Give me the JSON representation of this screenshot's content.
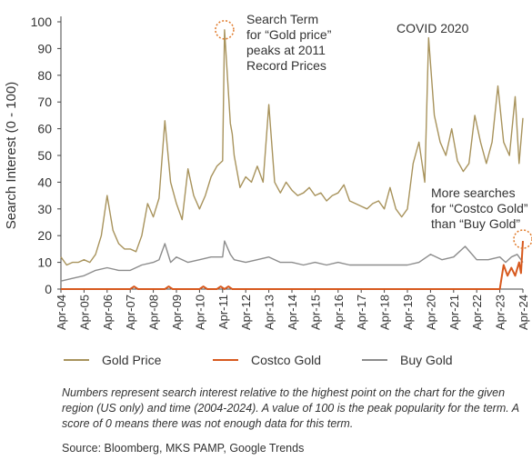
{
  "chart_data": {
    "type": "line",
    "ylabel": "Search Interest (0 - 100)",
    "xlabel": "",
    "ylim": [
      0,
      100
    ],
    "yticks": [
      0,
      10,
      20,
      30,
      40,
      50,
      60,
      70,
      80,
      90,
      100
    ],
    "x_range": [
      "Apr-04",
      "Apr-24"
    ],
    "xticks": [
      "Apr-04",
      "Apr-05",
      "Apr-06",
      "Apr-07",
      "Apr-08",
      "Apr-09",
      "Apr-10",
      "Apr-11",
      "Apr-12",
      "Apr-13",
      "Apr-14",
      "Apr-15",
      "Apr-16",
      "Apr-17",
      "Apr-18",
      "Apr-19",
      "Apr-20",
      "Apr-21",
      "Apr-22",
      "Apr-23",
      "Apr-24"
    ],
    "grid": false,
    "legend_placement": "bottom",
    "series": [
      {
        "name": "Gold Price",
        "color": "#a8935c",
        "points": [
          [
            "Apr-04",
            12
          ],
          [
            "Jul-04",
            9
          ],
          [
            "Oct-04",
            10
          ],
          [
            "Jan-05",
            10
          ],
          [
            "Apr-05",
            11
          ],
          [
            "Jul-05",
            10
          ],
          [
            "Oct-05",
            13
          ],
          [
            "Jan-06",
            20
          ],
          [
            "Apr-06",
            35
          ],
          [
            "Jul-06",
            22
          ],
          [
            "Oct-06",
            17
          ],
          [
            "Jan-07",
            15
          ],
          [
            "Apr-07",
            15
          ],
          [
            "Jul-07",
            14
          ],
          [
            "Oct-07",
            20
          ],
          [
            "Jan-08",
            32
          ],
          [
            "Apr-08",
            27
          ],
          [
            "Jul-08",
            34
          ],
          [
            "Oct-08",
            63
          ],
          [
            "Jan-09",
            40
          ],
          [
            "Apr-09",
            32
          ],
          [
            "Jul-09",
            26
          ],
          [
            "Oct-09",
            45
          ],
          [
            "Jan-10",
            35
          ],
          [
            "Apr-10",
            30
          ],
          [
            "Jul-10",
            35
          ],
          [
            "Oct-10",
            42
          ],
          [
            "Jan-11",
            46
          ],
          [
            "Apr-11",
            48
          ],
          [
            "May-11",
            97
          ],
          [
            "Aug-11",
            62
          ],
          [
            "Sep-11",
            58
          ],
          [
            "Oct-11",
            50
          ],
          [
            "Jan-12",
            38
          ],
          [
            "Apr-12",
            42
          ],
          [
            "Jul-12",
            40
          ],
          [
            "Oct-12",
            46
          ],
          [
            "Jan-13",
            40
          ],
          [
            "Apr-13",
            69
          ],
          [
            "Jul-13",
            40
          ],
          [
            "Oct-13",
            36
          ],
          [
            "Jan-14",
            40
          ],
          [
            "Apr-14",
            37
          ],
          [
            "Jul-14",
            35
          ],
          [
            "Oct-14",
            36
          ],
          [
            "Jan-15",
            38
          ],
          [
            "Apr-15",
            35
          ],
          [
            "Jul-15",
            36
          ],
          [
            "Oct-15",
            33
          ],
          [
            "Jan-16",
            35
          ],
          [
            "Apr-16",
            36
          ],
          [
            "Jul-16",
            39
          ],
          [
            "Oct-16",
            33
          ],
          [
            "Jan-17",
            32
          ],
          [
            "Apr-17",
            31
          ],
          [
            "Jul-17",
            30
          ],
          [
            "Oct-17",
            32
          ],
          [
            "Jan-18",
            33
          ],
          [
            "Apr-18",
            30
          ],
          [
            "Jul-18",
            38
          ],
          [
            "Oct-18",
            30
          ],
          [
            "Jan-19",
            27
          ],
          [
            "Apr-19",
            30
          ],
          [
            "Jul-19",
            47
          ],
          [
            "Oct-19",
            55
          ],
          [
            "Jan-20",
            40
          ],
          [
            "Mar-20",
            94
          ],
          [
            "Jun-20",
            65
          ],
          [
            "Sep-20",
            55
          ],
          [
            "Dec-20",
            50
          ],
          [
            "Mar-21",
            60
          ],
          [
            "Jun-21",
            48
          ],
          [
            "Sep-21",
            44
          ],
          [
            "Dec-21",
            47
          ],
          [
            "Mar-22",
            65
          ],
          [
            "Jun-22",
            55
          ],
          [
            "Sep-22",
            47
          ],
          [
            "Dec-22",
            55
          ],
          [
            "Mar-23",
            76
          ],
          [
            "Jun-23",
            55
          ],
          [
            "Sep-23",
            50
          ],
          [
            "Dec-23",
            72
          ],
          [
            "Feb-24",
            47
          ],
          [
            "Apr-24",
            64
          ]
        ]
      },
      {
        "name": "Costco Gold",
        "color": "#d7591e",
        "points": [
          [
            "Apr-04",
            0
          ],
          [
            "Apr-07",
            0
          ],
          [
            "Jun-07",
            1
          ],
          [
            "Aug-07",
            0
          ],
          [
            "Oct-08",
            0
          ],
          [
            "Dec-08",
            1
          ],
          [
            "Feb-09",
            0
          ],
          [
            "Apr-10",
            0
          ],
          [
            "Jun-10",
            1
          ],
          [
            "Aug-10",
            0
          ],
          [
            "Jan-11",
            0
          ],
          [
            "Mar-11",
            1
          ],
          [
            "May-11",
            0
          ],
          [
            "Jul-11",
            1
          ],
          [
            "Sep-11",
            0
          ],
          [
            "Apr-23",
            0
          ],
          [
            "Jun-23",
            9
          ],
          [
            "Aug-23",
            5
          ],
          [
            "Oct-23",
            8
          ],
          [
            "Dec-23",
            5
          ],
          [
            "Feb-24",
            10
          ],
          [
            "Mar-24",
            6
          ],
          [
            "Apr-24",
            18
          ]
        ]
      },
      {
        "name": "Buy Gold",
        "color": "#8c8c8c",
        "points": [
          [
            "Apr-04",
            3
          ],
          [
            "Oct-04",
            4
          ],
          [
            "Apr-05",
            5
          ],
          [
            "Oct-05",
            7
          ],
          [
            "Apr-06",
            8
          ],
          [
            "Oct-06",
            7
          ],
          [
            "Apr-07",
            7
          ],
          [
            "Oct-07",
            9
          ],
          [
            "Apr-08",
            10
          ],
          [
            "Jul-08",
            11
          ],
          [
            "Oct-08",
            17
          ],
          [
            "Jan-09",
            10
          ],
          [
            "Apr-09",
            12
          ],
          [
            "Oct-09",
            10
          ],
          [
            "Apr-10",
            11
          ],
          [
            "Oct-10",
            12
          ],
          [
            "Apr-11",
            12
          ],
          [
            "May-11",
            18
          ],
          [
            "Aug-11",
            13
          ],
          [
            "Oct-11",
            11
          ],
          [
            "Apr-12",
            10
          ],
          [
            "Oct-12",
            11
          ],
          [
            "Apr-13",
            12
          ],
          [
            "Oct-13",
            10
          ],
          [
            "Apr-14",
            10
          ],
          [
            "Oct-14",
            9
          ],
          [
            "Apr-15",
            10
          ],
          [
            "Oct-15",
            9
          ],
          [
            "Apr-16",
            10
          ],
          [
            "Oct-16",
            9
          ],
          [
            "Apr-17",
            9
          ],
          [
            "Oct-17",
            9
          ],
          [
            "Apr-18",
            9
          ],
          [
            "Oct-18",
            9
          ],
          [
            "Apr-19",
            9
          ],
          [
            "Oct-19",
            10
          ],
          [
            "Apr-20",
            13
          ],
          [
            "Oct-20",
            11
          ],
          [
            "Apr-21",
            12
          ],
          [
            "Oct-21",
            16
          ],
          [
            "Apr-22",
            11
          ],
          [
            "Oct-22",
            11
          ],
          [
            "Apr-23",
            12
          ],
          [
            "Jul-23",
            10
          ],
          [
            "Oct-23",
            12
          ],
          [
            "Jan-24",
            13
          ],
          [
            "Apr-24",
            10
          ]
        ]
      }
    ],
    "annotations": [
      {
        "lines": [
          "Search Term",
          "for “Gold price”",
          "peaks at 2011",
          "Record Prices"
        ],
        "target": [
          "May-11",
          97
        ]
      },
      {
        "lines": [
          "COVID 2020"
        ],
        "target": [
          "Mar-20",
          94
        ]
      },
      {
        "lines": [
          "More searches",
          "for “Costco Gold”",
          "than “Buy Gold”"
        ],
        "target": [
          "Apr-24",
          18
        ]
      }
    ]
  },
  "legend": [
    {
      "label": "Gold Price",
      "color": "#a8935c"
    },
    {
      "label": "Costco Gold",
      "color": "#d7591e"
    },
    {
      "label": "Buy Gold",
      "color": "#8c8c8c"
    }
  ],
  "note": "Numbers represent search interest relative to the highest point on the chart for the given region (US only) and time (2004-2024). A value of 100 is the peak popularity for the term. A score of 0 means there was not enough data for this term.",
  "source": "Source: Bloomberg, MKS PAMP, Google Trends"
}
